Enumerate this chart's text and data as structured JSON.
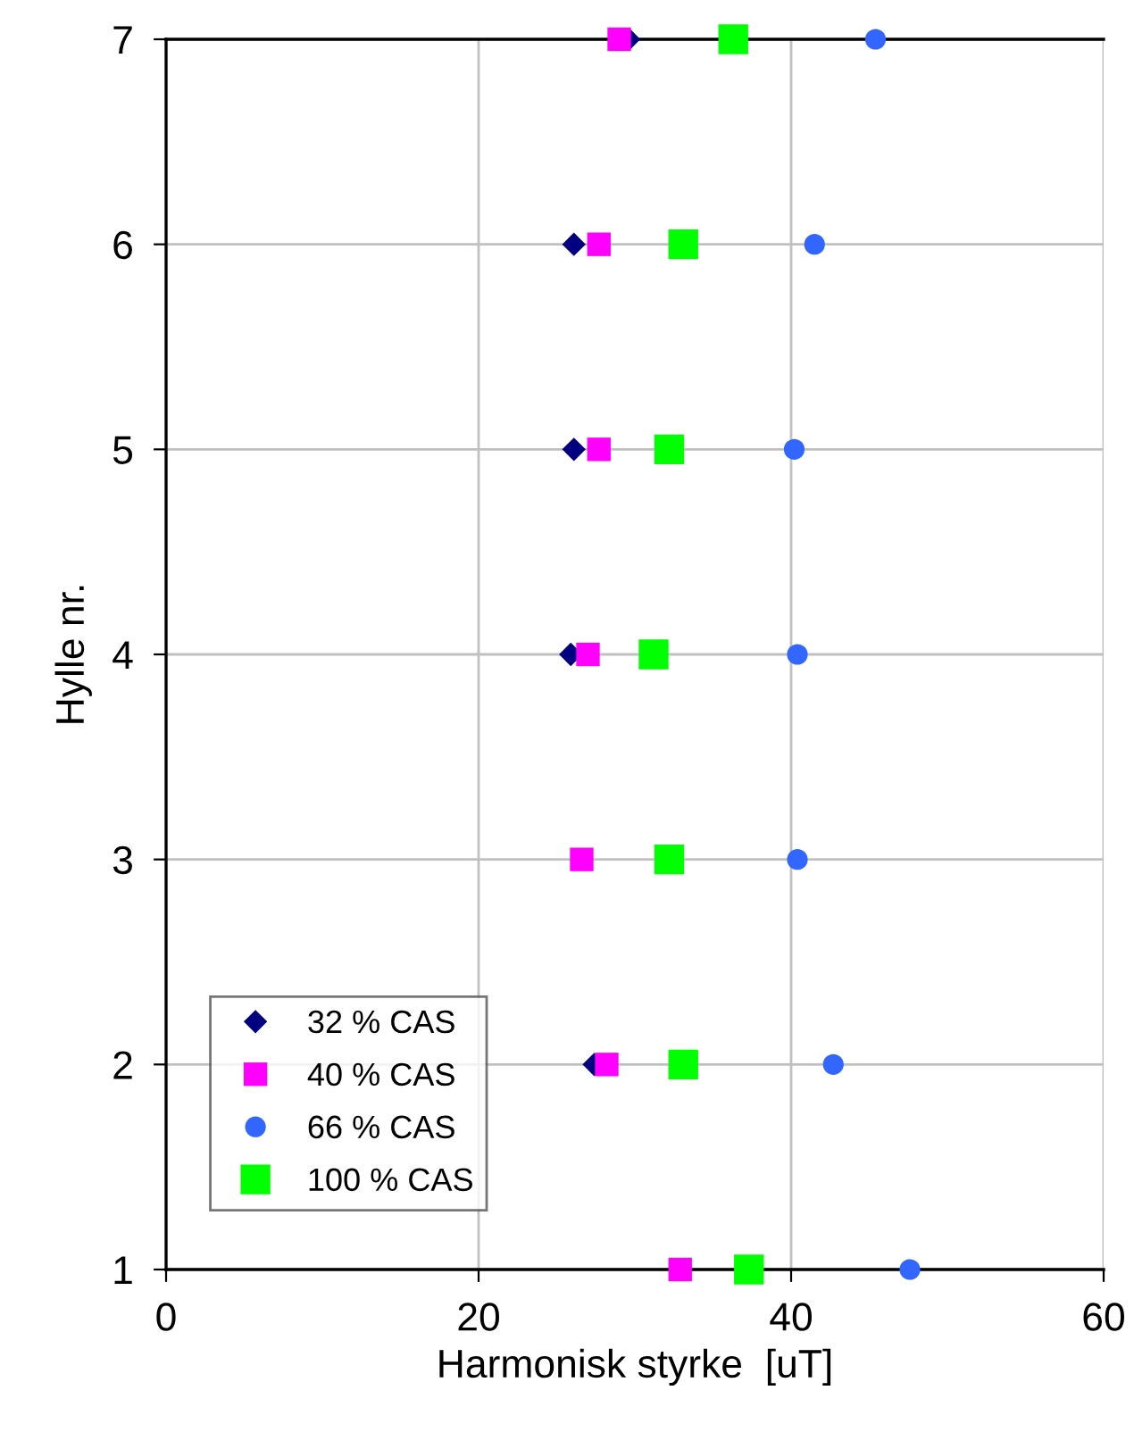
{
  "chart_data": {
    "type": "scatter",
    "xlabel": "Harmonisk styrke  [uT]",
    "ylabel": "Hylle nr.",
    "xlim": [
      0,
      60
    ],
    "xticks": [
      0,
      20,
      40,
      60
    ],
    "ylim": [
      1,
      7
    ],
    "yticks": [
      1,
      2,
      3,
      4,
      5,
      6,
      7
    ],
    "grid": true,
    "legend": "bottom left",
    "series": [
      {
        "name": "32 % CAS",
        "color": "#000080",
        "marker": "diamond",
        "x": [
          null,
          27.4,
          null,
          25.9,
          26.1,
          26.1,
          29.6
        ],
        "values": [
          null,
          2,
          null,
          4,
          5,
          6,
          7
        ]
      },
      {
        "name": "40 % CAS",
        "color": "#ff00ff",
        "marker": "square",
        "x": [
          32.9,
          28.2,
          26.6,
          27.0,
          27.7,
          27.7,
          29.0
        ],
        "values": [
          1,
          2,
          3,
          4,
          5,
          6,
          7
        ]
      },
      {
        "name": "66 % CAS",
        "color": "#3366ff",
        "marker": "circle",
        "x": [
          47.6,
          42.7,
          40.4,
          40.4,
          40.2,
          41.5,
          45.4
        ],
        "values": [
          1,
          2,
          3,
          4,
          5,
          6,
          7
        ]
      },
      {
        "name": "100 % CAS",
        "color": "#00ff00",
        "marker": "square",
        "x": [
          37.3,
          33.1,
          32.2,
          31.2,
          32.2,
          33.1,
          36.3
        ],
        "values": [
          1,
          2,
          3,
          4,
          5,
          6,
          7
        ]
      }
    ]
  }
}
